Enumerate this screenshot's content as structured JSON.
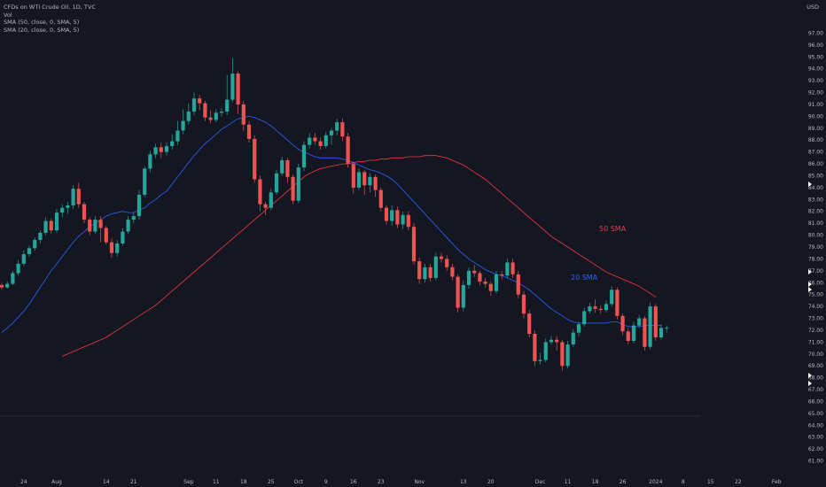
{
  "legend": {
    "symbol": "CFDs on WTI Crude Oil, 1D, TVC",
    "vol": "Vol",
    "sma1": "SMA (50, close, 0, SMA, 5)",
    "sma2": "SMA (20, close, 0, SMA, 5)"
  },
  "currency": "USD",
  "colors": {
    "up": "#26a69a",
    "down": "#ef5350",
    "sma20": "#2962ff",
    "sma50": "#f23645",
    "bg": "#141722",
    "text": "#b2b5be"
  },
  "annotations": {
    "sma50_label": "50 SMA",
    "sma20_label": "20 SMA"
  },
  "chart_data": {
    "type": "candlestick",
    "y_axis": {
      "min": 60,
      "max": 98,
      "ticks": [
        61,
        62,
        63,
        64,
        65,
        66,
        67,
        68,
        69,
        70,
        71,
        72,
        73,
        74,
        75,
        76,
        77,
        78,
        79,
        80,
        81,
        82,
        83,
        84,
        85,
        86,
        87,
        88,
        89,
        90,
        91,
        92,
        93,
        94,
        95,
        96,
        97
      ]
    },
    "x_tick_labels": [
      {
        "label": "24",
        "i": 4
      },
      {
        "label": "Aug",
        "i": 10
      },
      {
        "label": "14",
        "i": 19
      },
      {
        "label": "21",
        "i": 24
      },
      {
        "label": "Sep",
        "i": 34
      },
      {
        "label": "11",
        "i": 39
      },
      {
        "label": "18",
        "i": 44
      },
      {
        "label": "25",
        "i": 49
      },
      {
        "label": "Oct",
        "i": 54
      },
      {
        "label": "9",
        "i": 59
      },
      {
        "label": "16",
        "i": 64
      },
      {
        "label": "23",
        "i": 69
      },
      {
        "label": "Nov",
        "i": 76
      },
      {
        "label": "13",
        "i": 84
      },
      {
        "label": "20",
        "i": 89
      },
      {
        "label": "Dec",
        "i": 98
      },
      {
        "label": "11",
        "i": 103
      },
      {
        "label": "18",
        "i": 108
      },
      {
        "label": "26",
        "i": 113
      },
      {
        "label": "2024",
        "i": 119
      },
      {
        "label": "8",
        "i": 124
      },
      {
        "label": "15",
        "i": 129
      },
      {
        "label": "22",
        "i": 134
      },
      {
        "label": "Feb",
        "i": 141
      }
    ],
    "candles": [
      [
        75.8,
        75.6,
        76.0,
        75.4
      ],
      [
        75.6,
        75.9,
        76.1,
        75.5
      ],
      [
        75.9,
        76.8,
        77.0,
        75.8
      ],
      [
        76.8,
        77.6,
        77.9,
        76.6
      ],
      [
        77.6,
        78.4,
        78.7,
        77.4
      ],
      [
        78.4,
        78.9,
        79.1,
        78.2
      ],
      [
        78.9,
        79.6,
        79.8,
        78.7
      ],
      [
        79.6,
        80.2,
        80.4,
        79.3
      ],
      [
        80.2,
        81.2,
        81.5,
        80.0
      ],
      [
        81.2,
        80.4,
        81.4,
        80.1
      ],
      [
        80.4,
        81.9,
        82.2,
        80.2
      ],
      [
        81.9,
        82.3,
        82.6,
        81.5
      ],
      [
        82.3,
        82.5,
        82.8,
        81.8
      ],
      [
        82.5,
        83.9,
        84.2,
        82.2
      ],
      [
        83.9,
        82.6,
        84.4,
        82.3
      ],
      [
        82.6,
        81.3,
        82.8,
        81.0
      ],
      [
        81.3,
        80.3,
        81.5,
        80.0
      ],
      [
        80.3,
        81.3,
        81.6,
        80.1
      ],
      [
        81.3,
        80.6,
        81.6,
        79.4
      ],
      [
        80.6,
        79.4,
        80.8,
        79.2
      ],
      [
        79.4,
        78.5,
        79.7,
        78.1
      ],
      [
        78.5,
        79.3,
        79.6,
        78.2
      ],
      [
        79.3,
        80.3,
        80.6,
        79.1
      ],
      [
        80.3,
        81.3,
        81.6,
        80.1
      ],
      [
        81.3,
        81.6,
        81.9,
        81.0
      ],
      [
        81.6,
        83.4,
        83.8,
        81.3
      ],
      [
        83.4,
        85.6,
        85.8,
        83.2
      ],
      [
        85.6,
        86.8,
        87.1,
        85.3
      ],
      [
        86.8,
        87.4,
        87.7,
        86.5
      ],
      [
        87.4,
        87.0,
        87.8,
        86.5
      ],
      [
        87.0,
        87.5,
        87.8,
        86.7
      ],
      [
        87.5,
        87.9,
        88.5,
        87.2
      ],
      [
        87.9,
        88.8,
        89.6,
        87.6
      ],
      [
        88.8,
        89.6,
        90.6,
        88.5
      ],
      [
        89.6,
        90.4,
        91.1,
        89.3
      ],
      [
        90.4,
        91.5,
        92.0,
        90.1
      ],
      [
        91.5,
        91.1,
        91.8,
        90.5
      ],
      [
        91.1,
        89.9,
        91.3,
        89.6
      ],
      [
        89.9,
        89.7,
        90.5,
        89.4
      ],
      [
        89.7,
        90.3,
        90.6,
        89.5
      ],
      [
        90.3,
        90.4,
        90.7,
        90.0
      ],
      [
        90.4,
        91.4,
        93.5,
        90.1
      ],
      [
        91.4,
        93.6,
        94.9,
        91.2
      ],
      [
        93.6,
        91.0,
        93.8,
        90.2
      ],
      [
        91.0,
        89.3,
        91.3,
        88.8
      ],
      [
        89.3,
        88.1,
        89.6,
        87.8
      ],
      [
        88.1,
        84.7,
        88.4,
        84.4
      ],
      [
        84.7,
        82.6,
        85.0,
        82.0
      ],
      [
        82.6,
        82.3,
        82.8,
        81.7
      ],
      [
        82.3,
        83.6,
        83.9,
        82.1
      ],
      [
        83.6,
        85.2,
        85.5,
        83.4
      ],
      [
        85.2,
        86.3,
        86.6,
        85.0
      ],
      [
        86.3,
        84.9,
        86.5,
        84.4
      ],
      [
        84.9,
        82.9,
        85.1,
        82.6
      ],
      [
        82.9,
        85.7,
        86.0,
        82.7
      ],
      [
        85.7,
        87.6,
        87.9,
        85.4
      ],
      [
        87.6,
        88.2,
        88.6,
        87.3
      ],
      [
        88.2,
        87.9,
        88.6,
        87.6
      ],
      [
        87.9,
        87.5,
        88.2,
        87.2
      ],
      [
        87.5,
        88.4,
        88.7,
        87.3
      ],
      [
        88.4,
        88.8,
        89.0,
        87.6
      ],
      [
        88.8,
        89.5,
        89.8,
        88.4
      ],
      [
        89.5,
        88.3,
        89.8,
        87.9
      ],
      [
        88.3,
        86.0,
        88.6,
        85.7
      ],
      [
        86.0,
        84.0,
        86.2,
        83.5
      ],
      [
        84.0,
        85.3,
        85.6,
        83.8
      ],
      [
        85.3,
        84.2,
        85.5,
        83.4
      ],
      [
        84.2,
        84.9,
        85.2,
        83.6
      ],
      [
        84.9,
        83.8,
        85.1,
        83.2
      ],
      [
        83.8,
        82.3,
        84.0,
        82.0
      ],
      [
        82.3,
        81.2,
        82.5,
        80.9
      ],
      [
        81.2,
        82.1,
        82.5,
        80.8
      ],
      [
        82.1,
        80.9,
        82.4,
        80.6
      ],
      [
        80.9,
        81.7,
        82.0,
        80.5
      ],
      [
        81.7,
        80.7,
        82.0,
        80.4
      ],
      [
        80.7,
        77.8,
        81.0,
        77.5
      ],
      [
        77.8,
        76.3,
        78.1,
        75.9
      ],
      [
        76.3,
        77.3,
        77.6,
        76.0
      ],
      [
        77.3,
        76.4,
        77.6,
        76.1
      ],
      [
        76.4,
        78.2,
        78.5,
        76.2
      ],
      [
        78.2,
        78.0,
        78.5,
        77.7
      ],
      [
        78.0,
        77.3,
        78.3,
        77.0
      ],
      [
        77.3,
        76.5,
        77.6,
        76.2
      ],
      [
        76.5,
        73.9,
        76.7,
        73.5
      ],
      [
        73.9,
        75.8,
        76.2,
        73.6
      ],
      [
        75.8,
        77.0,
        77.3,
        75.5
      ],
      [
        77.0,
        76.8,
        77.5,
        76.5
      ],
      [
        76.8,
        76.1,
        77.0,
        75.8
      ],
      [
        76.1,
        75.9,
        76.4,
        75.6
      ],
      [
        75.9,
        75.3,
        76.1,
        74.9
      ],
      [
        75.3,
        76.7,
        77.0,
        75.1
      ],
      [
        76.7,
        76.6,
        77.0,
        76.3
      ],
      [
        76.6,
        77.7,
        78.0,
        76.4
      ],
      [
        77.7,
        76.7,
        78.0,
        76.4
      ],
      [
        76.7,
        75.0,
        77.0,
        74.7
      ],
      [
        75.0,
        73.4,
        75.3,
        73.0
      ],
      [
        73.4,
        71.7,
        73.7,
        71.4
      ],
      [
        71.7,
        69.4,
        72.0,
        69.0
      ],
      [
        69.4,
        69.5,
        70.1,
        69.1
      ],
      [
        69.5,
        71.0,
        71.3,
        69.3
      ],
      [
        71.0,
        71.2,
        71.5,
        70.8
      ],
      [
        71.2,
        71.0,
        71.5,
        70.3
      ],
      [
        71.0,
        69.0,
        71.2,
        68.6
      ],
      [
        69.0,
        70.8,
        71.1,
        68.8
      ],
      [
        70.8,
        71.8,
        72.1,
        70.6
      ],
      [
        71.8,
        72.5,
        72.7,
        71.5
      ],
      [
        72.5,
        73.6,
        73.9,
        72.3
      ],
      [
        73.6,
        74.0,
        74.3,
        73.4
      ],
      [
        74.0,
        73.8,
        74.6,
        73.5
      ],
      [
        73.8,
        73.7,
        74.1,
        73.4
      ],
      [
        73.7,
        74.2,
        74.5,
        73.5
      ],
      [
        74.2,
        75.4,
        75.7,
        74.0
      ],
      [
        75.4,
        73.2,
        75.6,
        72.9
      ],
      [
        73.2,
        71.9,
        73.4,
        71.6
      ],
      [
        71.9,
        71.1,
        72.2,
        70.8
      ],
      [
        71.1,
        72.4,
        72.7,
        70.9
      ],
      [
        72.4,
        73.0,
        73.3,
        72.2
      ],
      [
        73.0,
        70.6,
        73.2,
        70.3
      ],
      [
        70.6,
        74.0,
        74.3,
        70.4
      ],
      [
        74.0,
        71.4,
        74.2,
        71.1
      ],
      [
        71.4,
        72.2,
        72.5,
        71.2
      ],
      [
        72.2,
        72.2,
        72.4,
        71.8
      ]
    ],
    "sma20": [
      71.8,
      72.2,
      72.6,
      73.1,
      73.6,
      74.2,
      74.9,
      75.6,
      76.3,
      77.0,
      77.6,
      78.2,
      78.8,
      79.4,
      79.9,
      80.3,
      80.7,
      81.0,
      81.3,
      81.6,
      81.8,
      81.9,
      82.0,
      81.9,
      81.9,
      82.1,
      82.3,
      82.7,
      83.0,
      83.4,
      83.7,
      84.3,
      84.9,
      85.5,
      86.1,
      86.7,
      87.2,
      87.7,
      88.1,
      88.5,
      88.9,
      89.2,
      89.5,
      89.8,
      89.9,
      90.0,
      89.9,
      89.7,
      89.5,
      89.2,
      88.8,
      88.4,
      88.0,
      87.6,
      87.2,
      87.0,
      86.8,
      86.6,
      86.5,
      86.5,
      86.5,
      86.5,
      86.4,
      86.3,
      86.1,
      85.9,
      85.7,
      85.5,
      85.4,
      85.2,
      85.0,
      84.7,
      84.3,
      83.8,
      83.3,
      82.8,
      82.3,
      81.8,
      81.3,
      80.8,
      80.3,
      79.8,
      79.3,
      78.8,
      78.4,
      78.0,
      77.7,
      77.4,
      77.1,
      76.9,
      76.7,
      76.6,
      76.4,
      76.2,
      76.0,
      75.7,
      75.4,
      75.0,
      74.6,
      74.2,
      73.8,
      73.5,
      73.2,
      72.9,
      72.7,
      72.6,
      72.6,
      72.6,
      72.6,
      72.6,
      72.6,
      72.7,
      72.7,
      72.5,
      72.3,
      72.3,
      72.3,
      72.4,
      72.4,
      72.4,
      72.4
    ],
    "sma50": [
      69.8,
      70.0,
      70.2,
      70.4,
      70.6,
      70.8,
      71.0,
      71.2,
      71.4,
      71.7,
      72.0,
      72.3,
      72.6,
      72.9,
      73.2,
      73.5,
      73.8,
      74.1,
      74.5,
      74.9,
      75.3,
      75.7,
      76.1,
      76.5,
      76.9,
      77.3,
      77.7,
      78.1,
      78.5,
      78.9,
      79.3,
      79.7,
      80.1,
      80.5,
      80.9,
      81.3,
      81.7,
      82.1,
      82.5,
      82.9,
      83.3,
      83.7,
      84.1,
      84.5,
      84.9,
      85.2,
      85.4,
      85.6,
      85.7,
      85.8,
      85.9,
      86.0,
      86.0,
      86.1,
      86.2,
      86.2,
      86.3,
      86.3,
      86.4,
      86.4,
      86.5,
      86.5,
      86.5,
      86.6,
      86.6,
      86.6,
      86.7,
      86.7,
      86.7,
      86.6,
      86.5,
      86.3,
      86.1,
      85.9,
      85.6,
      85.3,
      85.0,
      84.7,
      84.3,
      83.9,
      83.5,
      83.1,
      82.7,
      82.3,
      81.9,
      81.5,
      81.1,
      80.7,
      80.3,
      79.9,
      79.6,
      79.3,
      79.0,
      78.7,
      78.4,
      78.1,
      77.8,
      77.5,
      77.2,
      76.9,
      76.7,
      76.5,
      76.3,
      76.1,
      75.9,
      75.7,
      75.4,
      75.1,
      74.8
    ],
    "sma50_start_index": 11
  }
}
